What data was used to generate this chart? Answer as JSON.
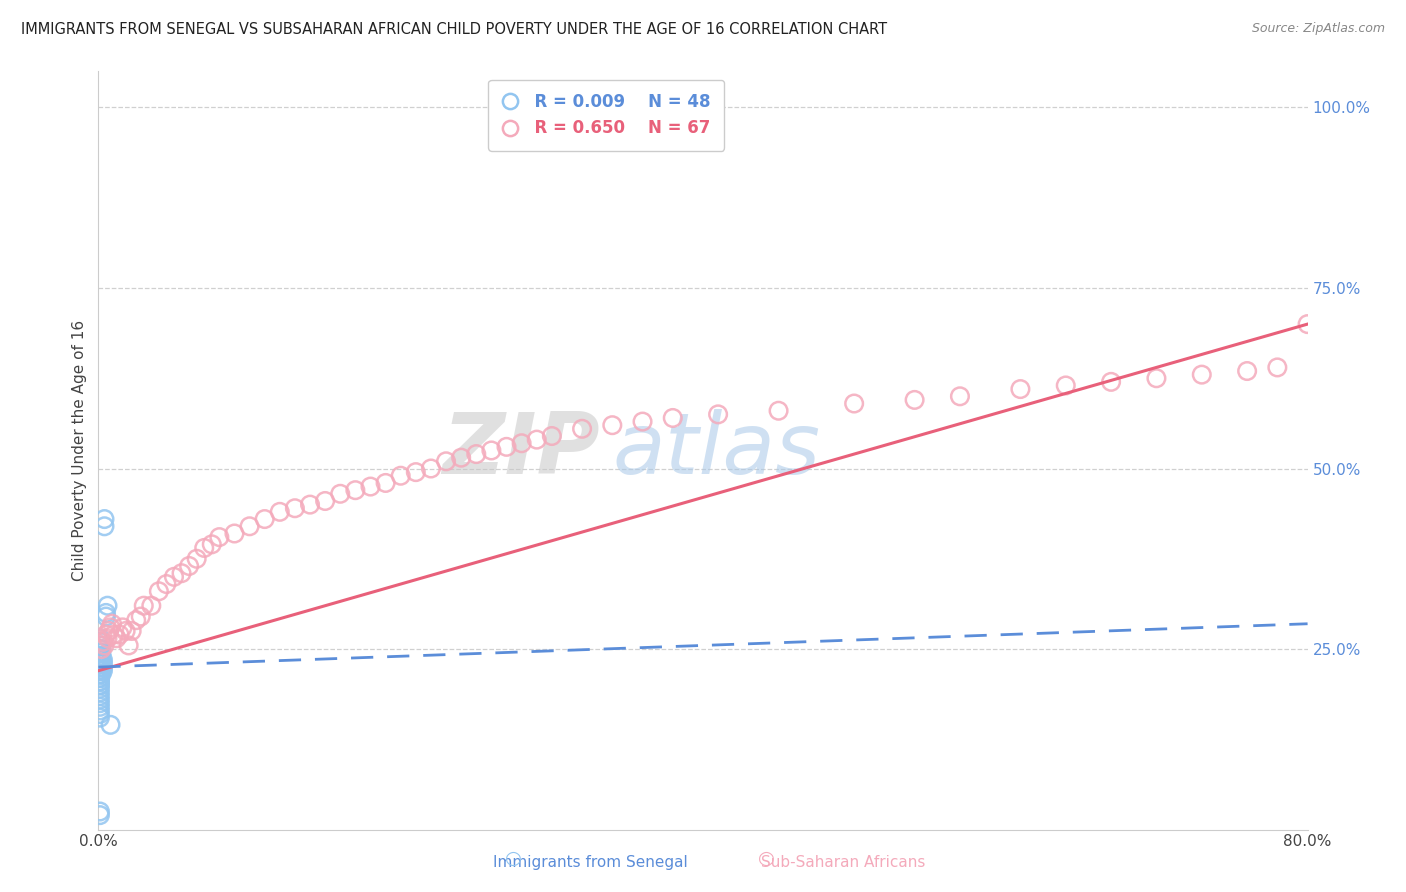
{
  "title": "IMMIGRANTS FROM SENEGAL VS SUBSAHARAN AFRICAN CHILD POVERTY UNDER THE AGE OF 16 CORRELATION CHART",
  "source": "Source: ZipAtlas.com",
  "ylabel": "Child Poverty Under the Age of 16",
  "xlabel_blue": "Immigrants from Senegal",
  "xlabel_pink": "Sub-Saharan Africans",
  "legend_blue_R": "R = 0.009",
  "legend_blue_N": "N = 48",
  "legend_pink_R": "R = 0.650",
  "legend_pink_N": "N = 67",
  "blue_color": "#92C5F0",
  "pink_color": "#F4AABB",
  "blue_line_color": "#5B8DD9",
  "pink_line_color": "#E8607A",
  "watermark_zip": "ZIP",
  "watermark_atlas": "atlas",
  "xlim": [
    0.0,
    0.8
  ],
  "ylim": [
    0.0,
    1.05
  ],
  "background_color": "#ffffff",
  "grid_color": "#d0d0d0",
  "blue_scatter_x": [
    0.001,
    0.001,
    0.001,
    0.001,
    0.001,
    0.001,
    0.001,
    0.001,
    0.001,
    0.001,
    0.001,
    0.001,
    0.001,
    0.001,
    0.001,
    0.001,
    0.001,
    0.001,
    0.001,
    0.001,
    0.002,
    0.002,
    0.002,
    0.002,
    0.002,
    0.002,
    0.002,
    0.002,
    0.003,
    0.003,
    0.003,
    0.003,
    0.004,
    0.004,
    0.005,
    0.005,
    0.006,
    0.008,
    0.001,
    0.001,
    0.001,
    0.001,
    0.001,
    0.001,
    0.001,
    0.001,
    0.001,
    0.001
  ],
  "blue_scatter_y": [
    0.205,
    0.21,
    0.215,
    0.22,
    0.225,
    0.23,
    0.235,
    0.24,
    0.245,
    0.25,
    0.255,
    0.26,
    0.265,
    0.22,
    0.215,
    0.21,
    0.205,
    0.2,
    0.195,
    0.19,
    0.215,
    0.22,
    0.225,
    0.23,
    0.235,
    0.24,
    0.245,
    0.25,
    0.22,
    0.225,
    0.23,
    0.235,
    0.42,
    0.43,
    0.295,
    0.3,
    0.31,
    0.145,
    0.175,
    0.18,
    0.185,
    0.155,
    0.16,
    0.165,
    0.17,
    0.02,
    0.025,
    0.2
  ],
  "pink_scatter_x": [
    0.002,
    0.003,
    0.004,
    0.005,
    0.006,
    0.007,
    0.008,
    0.009,
    0.01,
    0.012,
    0.014,
    0.016,
    0.018,
    0.02,
    0.022,
    0.025,
    0.028,
    0.03,
    0.035,
    0.04,
    0.045,
    0.05,
    0.055,
    0.06,
    0.065,
    0.07,
    0.075,
    0.08,
    0.09,
    0.1,
    0.11,
    0.12,
    0.13,
    0.14,
    0.15,
    0.16,
    0.17,
    0.18,
    0.19,
    0.2,
    0.21,
    0.22,
    0.23,
    0.24,
    0.25,
    0.26,
    0.27,
    0.28,
    0.29,
    0.3,
    0.32,
    0.34,
    0.36,
    0.38,
    0.41,
    0.45,
    0.5,
    0.54,
    0.57,
    0.61,
    0.64,
    0.67,
    0.7,
    0.73,
    0.76,
    0.78,
    0.8
  ],
  "pink_scatter_y": [
    0.25,
    0.26,
    0.255,
    0.27,
    0.265,
    0.275,
    0.28,
    0.285,
    0.27,
    0.265,
    0.27,
    0.28,
    0.275,
    0.255,
    0.275,
    0.29,
    0.295,
    0.31,
    0.31,
    0.33,
    0.34,
    0.35,
    0.355,
    0.365,
    0.375,
    0.39,
    0.395,
    0.405,
    0.41,
    0.42,
    0.43,
    0.44,
    0.445,
    0.45,
    0.455,
    0.465,
    0.47,
    0.475,
    0.48,
    0.49,
    0.495,
    0.5,
    0.51,
    0.515,
    0.52,
    0.525,
    0.53,
    0.535,
    0.54,
    0.545,
    0.555,
    0.56,
    0.565,
    0.57,
    0.575,
    0.58,
    0.59,
    0.595,
    0.6,
    0.61,
    0.615,
    0.62,
    0.625,
    0.63,
    0.635,
    0.64,
    0.7
  ]
}
